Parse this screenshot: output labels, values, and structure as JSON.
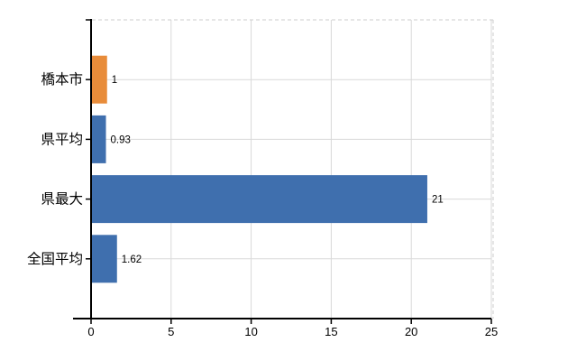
{
  "chart_data": {
    "type": "bar",
    "orientation": "horizontal",
    "title": "",
    "xlabel": "",
    "ylabel": "",
    "categories": [
      "橋本市",
      "県平均",
      "県最大",
      "全国平均"
    ],
    "values": [
      1,
      0.93,
      21,
      1.62
    ],
    "value_labels": [
      "1",
      "0.93",
      "21",
      "1.62"
    ],
    "bar_colors": [
      "#E88C3A",
      "#3F6FAE",
      "#3F6FAE",
      "#3F6FAE"
    ],
    "xlim": [
      0,
      25
    ],
    "x_ticks": [
      0,
      5,
      10,
      15,
      20,
      25
    ],
    "x_tick_labels": [
      "0",
      "5",
      "10",
      "15",
      "20",
      "25"
    ],
    "grid": true,
    "legend": false,
    "colors": {
      "background": "#FFFFFF",
      "axis": "#000000",
      "gridline": "#D9D9D9",
      "plot_border_dashed": "#CCCCCC",
      "text": "#000000"
    }
  }
}
